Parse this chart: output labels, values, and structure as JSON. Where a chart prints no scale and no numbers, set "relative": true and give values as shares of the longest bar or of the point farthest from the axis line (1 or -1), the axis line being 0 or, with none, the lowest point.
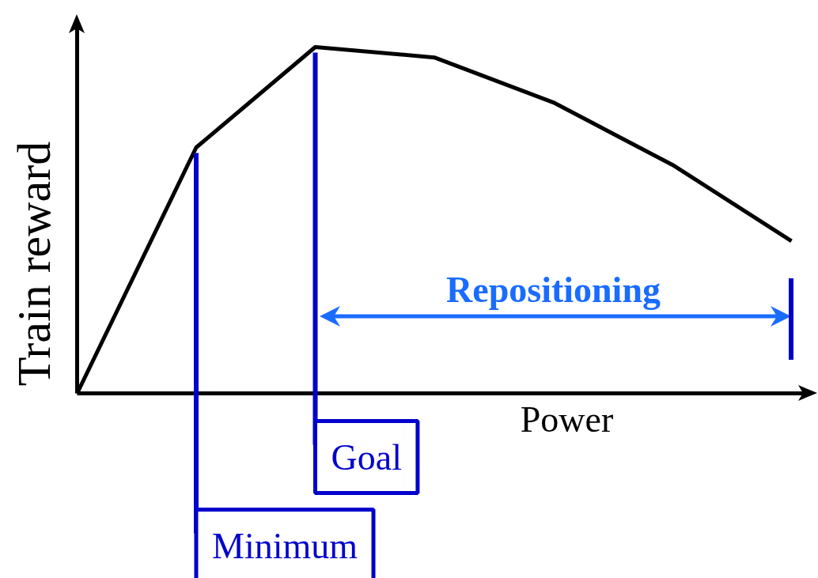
{
  "chart_data": {
    "type": "line",
    "relative": true,
    "xlabel": "Power",
    "ylabel": "Train reward",
    "categories": [
      null,
      null,
      null,
      null,
      null,
      null,
      null
    ],
    "series": [
      {
        "color": "#000000",
        "values": [
          0,
          0.71,
          1,
          0.97,
          0.84,
          0.66,
          0.44
        ]
      }
    ],
    "annotations": [
      "Minimum",
      "Goal",
      "Repositioning"
    ],
    "marker": "none",
    "line_style": "solid",
    "grid": false,
    "tick_labels": false
  }
}
